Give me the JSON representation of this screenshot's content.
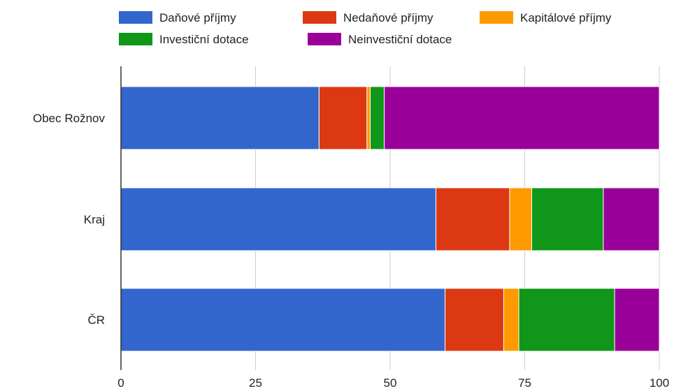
{
  "chart_data": {
    "type": "bar",
    "orientation": "horizontal",
    "stacked": true,
    "categories": [
      "Obec Rožnov",
      "Kraj",
      "ČR"
    ],
    "series": [
      {
        "name": "Daňové příjmy",
        "color": "#3366cc",
        "values": [
          36.8,
          58.5,
          60.2
        ]
      },
      {
        "name": "Nedaňové příjmy",
        "color": "#dc3912",
        "values": [
          8.9,
          13.7,
          10.9
        ]
      },
      {
        "name": "Kapitálové příjmy",
        "color": "#ff9900",
        "values": [
          0.6,
          4.1,
          2.8
        ]
      },
      {
        "name": "Investiční dotace",
        "color": "#109618",
        "values": [
          2.6,
          13.3,
          17.8
        ]
      },
      {
        "name": "Neinvestiční dotace",
        "color": "#990099",
        "values": [
          51.1,
          10.4,
          8.3
        ]
      }
    ],
    "xlim": [
      0,
      100
    ],
    "xticks": [
      "0",
      "25",
      "50",
      "75",
      "100"
    ],
    "grid": true,
    "legend_position": "top"
  }
}
